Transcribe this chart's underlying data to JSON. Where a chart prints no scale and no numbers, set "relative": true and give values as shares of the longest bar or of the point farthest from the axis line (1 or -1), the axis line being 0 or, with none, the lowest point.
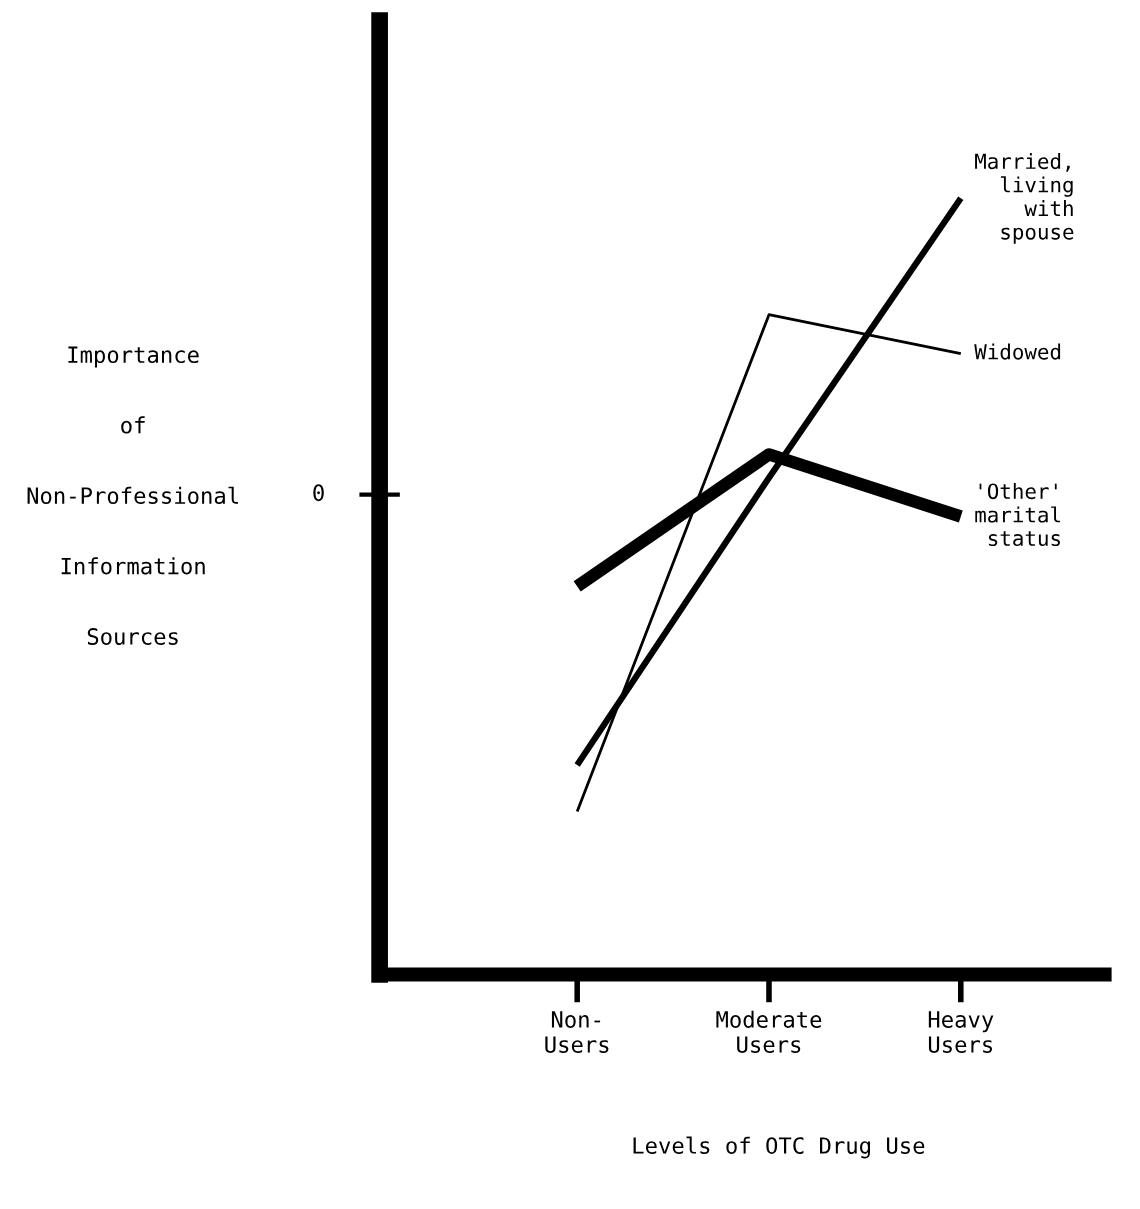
{
  "chart_data": {
    "type": "line",
    "relative": true,
    "xlabel": "Levels of OTC Drug Use",
    "ylabel": "Importance of Non-Professional Information Sources",
    "categories": [
      "Non-\nUsers",
      "Moderate\nUsers",
      "Heavy\nUsers"
    ],
    "annotations": [
      "0"
    ],
    "series": [
      {
        "name": "Married,\nliving\nwith\nspouse",
        "color": "#000000",
        "values": [
          0.27,
          0.64,
          1.0
        ]
      },
      {
        "name": "Widowed",
        "color": "#000000",
        "values": [
          0.21,
          0.85,
          0.8
        ]
      },
      {
        "name": "'Other'\nmarital\nstatus",
        "color": "#000000",
        "values": [
          0.5,
          0.67,
          0.59
        ]
      }
    ],
    "grid": false,
    "legend": false,
    "marker": "none",
    "line_style": "solid"
  }
}
